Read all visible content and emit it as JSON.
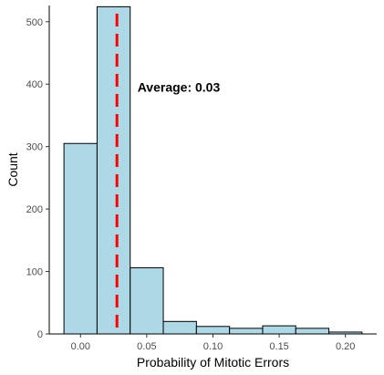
{
  "chart_data": {
    "type": "bar",
    "subtype": "histogram",
    "xlabel": "Probability of Mitotic Errors",
    "ylabel": "Count",
    "bin_width": 0.025,
    "bins": [
      {
        "start": -0.0125,
        "end": 0.0125,
        "count": 305
      },
      {
        "start": 0.0125,
        "end": 0.0375,
        "count": 524
      },
      {
        "start": 0.0375,
        "end": 0.0625,
        "count": 106
      },
      {
        "start": 0.0625,
        "end": 0.0875,
        "count": 20
      },
      {
        "start": 0.0875,
        "end": 0.1125,
        "count": 12
      },
      {
        "start": 0.1125,
        "end": 0.1375,
        "count": 9
      },
      {
        "start": 0.1375,
        "end": 0.1625,
        "count": 13
      },
      {
        "start": 0.1625,
        "end": 0.1875,
        "count": 9
      },
      {
        "start": 0.1875,
        "end": 0.2125,
        "count": 3
      }
    ],
    "xlim": [
      -0.0236,
      0.2236
    ],
    "ylim": [
      0,
      526
    ],
    "x_ticks": [
      0.0,
      0.05,
      0.1,
      0.15,
      0.2
    ],
    "x_tick_labels": [
      "0.00",
      "0.05",
      "0.10",
      "0.15",
      "0.20"
    ],
    "y_ticks": [
      0,
      100,
      200,
      300,
      400,
      500
    ],
    "y_tick_labels": [
      "0",
      "100",
      "200",
      "300",
      "400",
      "500"
    ],
    "grid": false,
    "bar_fill": "#add8e6",
    "bar_stroke": "#000000",
    "mean_line": {
      "x": 0.0275,
      "color": "#ff0000",
      "style": "dashed"
    },
    "annotation": {
      "text": "Average:  0.03",
      "x": 0.043,
      "y": 395
    }
  }
}
